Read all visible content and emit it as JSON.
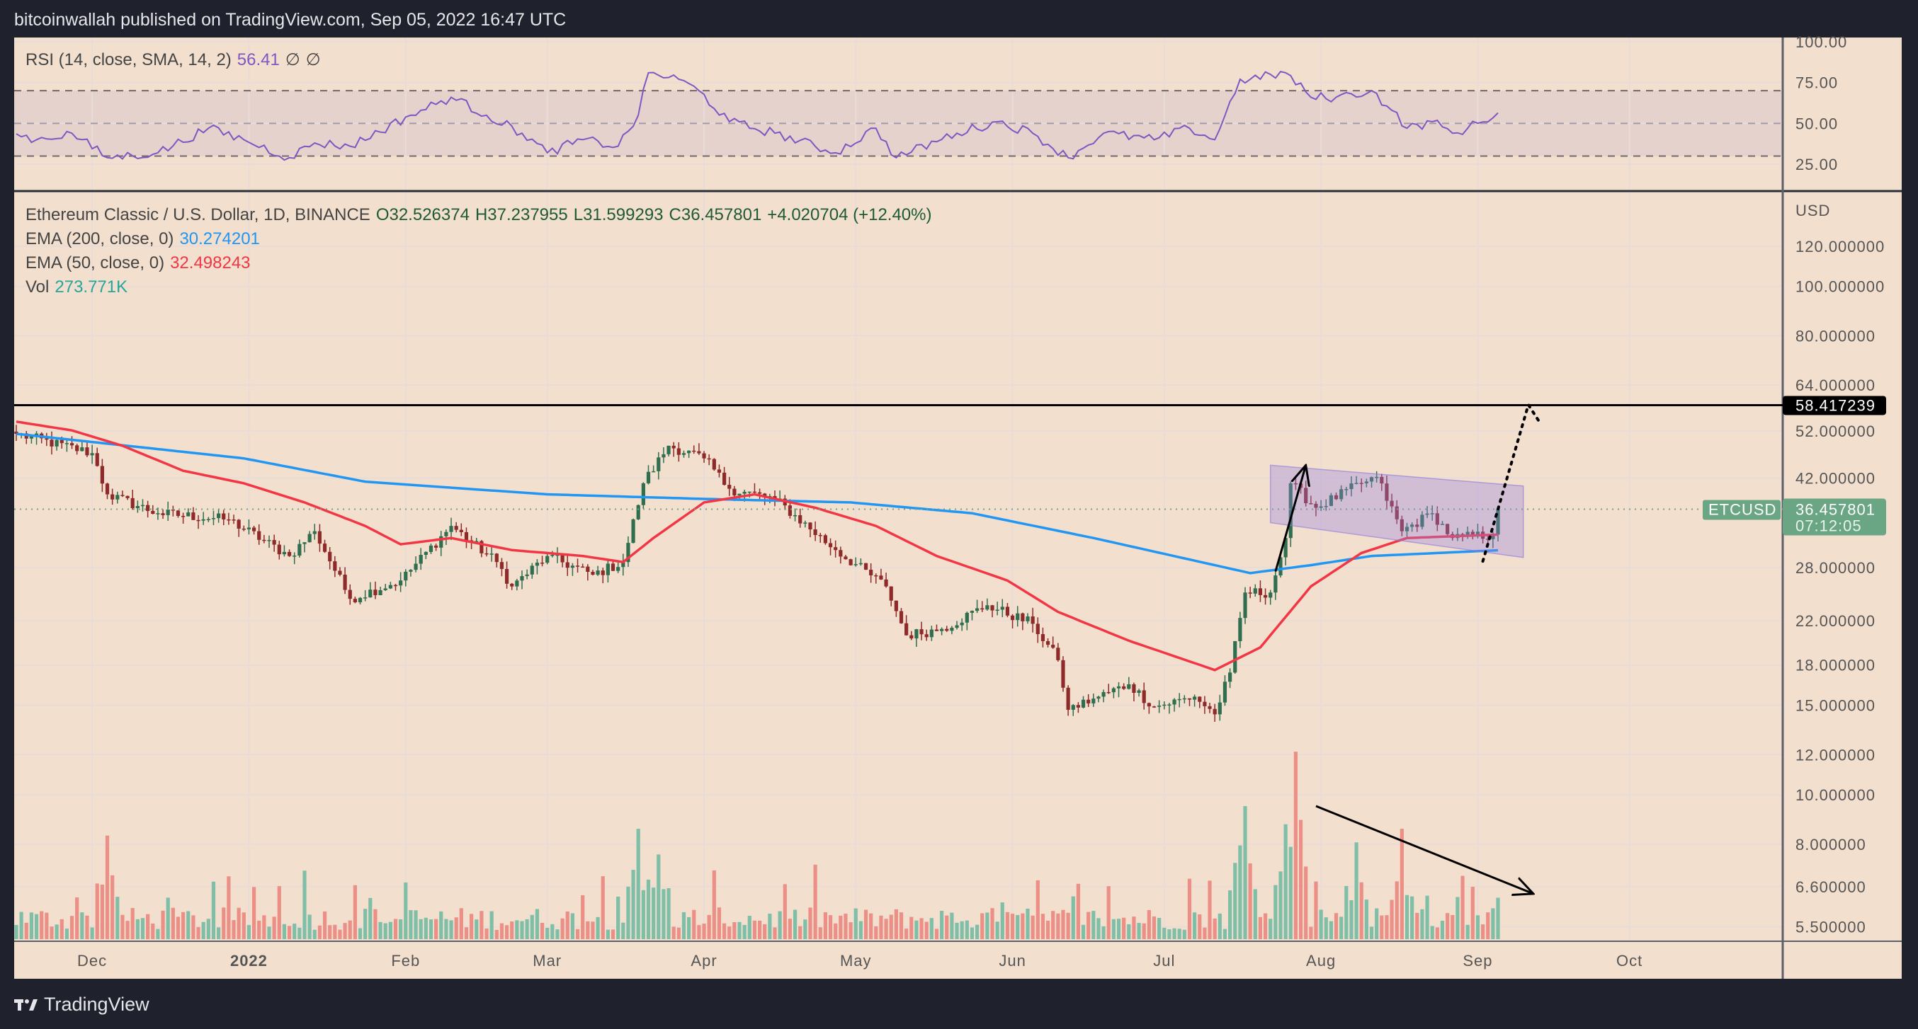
{
  "header": {
    "published": "bitcoinwallah published on TradingView.com, Sep 05, 2022 16:47 UTC"
  },
  "rsi_legend": {
    "label": "RSI (14, close, SMA, 14, 2)",
    "value": "56.41",
    "sym1": "∅",
    "sym2": "∅"
  },
  "price_legend": {
    "label": "Ethereum Classic / U.S. Dollar, 1D, BINANCE",
    "o": "O32.526374",
    "h": "H37.237955",
    "l": "L31.599293",
    "c": "C36.457801",
    "chg": "+4.020704 (+12.40%)"
  },
  "ema200_legend": {
    "label": "EMA (200, close, 0)",
    "value": "30.274201"
  },
  "ema50_legend": {
    "label": "EMA (50, close, 0)",
    "value": "32.498243"
  },
  "vol_legend": {
    "label": "Vol",
    "value": "273.771K"
  },
  "footer": {
    "brand": "TradingView"
  },
  "colors": {
    "up": "#2f6e4e",
    "down": "#8e2a2a",
    "ema200": "#2196f3",
    "ema50": "#f23645",
    "rsi": "#7e57c2",
    "vol_up": "#7fbfa8",
    "vol_down": "#ec8f87",
    "bg": "#f2dfcd"
  },
  "chart_data": {
    "type": "candlestick",
    "symbol": "ETCUSD",
    "start_date": "2021-11-16",
    "x_unit": "days since start_date",
    "y_scale": "log",
    "price_axis_unit": "USD",
    "price_ticks": [
      "120.000000",
      "100.000000",
      "80.000000",
      "64.000000",
      "52.000000",
      "42.000000",
      "28.000000",
      "22.000000",
      "18.000000",
      "15.000000",
      "12.000000",
      "10.000000",
      "8.000000",
      "6.600000",
      "5.500000"
    ],
    "rsi_ticks": [
      "100.00",
      "75.00",
      "50.00",
      "25.00"
    ],
    "time_ticks": [
      {
        "label": "Dec",
        "day": 15
      },
      {
        "label": "2022",
        "day": 46,
        "bold": true
      },
      {
        "label": "Feb",
        "day": 77
      },
      {
        "label": "Mar",
        "day": 105
      },
      {
        "label": "Apr",
        "day": 136
      },
      {
        "label": "May",
        "day": 166
      },
      {
        "label": "Jun",
        "day": 197
      },
      {
        "label": "Jul",
        "day": 227
      },
      {
        "label": "Aug",
        "day": 258
      },
      {
        "label": "Sep",
        "day": 289
      },
      {
        "label": "Oct",
        "day": 319
      }
    ],
    "close_keypoints": [
      [
        0,
        51.3
      ],
      [
        15,
        47
      ],
      [
        18,
        39
      ],
      [
        28,
        35.8
      ],
      [
        42,
        34.8
      ],
      [
        54,
        29.5
      ],
      [
        59,
        33
      ],
      [
        66,
        24.3
      ],
      [
        76,
        26.4
      ],
      [
        86,
        33.8
      ],
      [
        95,
        28.7
      ],
      [
        98,
        25.7
      ],
      [
        105,
        29.5
      ],
      [
        114,
        27.1
      ],
      [
        120,
        28.7
      ],
      [
        124,
        41
      ],
      [
        129,
        48.6
      ],
      [
        136,
        45.9
      ],
      [
        141,
        40
      ],
      [
        150,
        38.2
      ],
      [
        162,
        30.3
      ],
      [
        172,
        25.7
      ],
      [
        176,
        20.6
      ],
      [
        183,
        21.2
      ],
      [
        192,
        23.6
      ],
      [
        201,
        21.7
      ],
      [
        206,
        18.4
      ],
      [
        208,
        14.7
      ],
      [
        214,
        15.6
      ],
      [
        220,
        16.5
      ],
      [
        225,
        14.9
      ],
      [
        233,
        15.6
      ],
      [
        237,
        14.4
      ],
      [
        240,
        17.4
      ],
      [
        243,
        25
      ],
      [
        248,
        25
      ],
      [
        251,
        32
      ],
      [
        252,
        41
      ],
      [
        257,
        36.7
      ],
      [
        266,
        41
      ],
      [
        269,
        42.2
      ],
      [
        274,
        33
      ],
      [
        280,
        35.8
      ],
      [
        284,
        32
      ],
      [
        292,
        32.5
      ],
      [
        293,
        36.457801
      ]
    ],
    "ema200_keypoints": [
      [
        0,
        51.3
      ],
      [
        45,
        45.9
      ],
      [
        69,
        41.3
      ],
      [
        105,
        39
      ],
      [
        136,
        38.2
      ],
      [
        165,
        37.6
      ],
      [
        189,
        35.8
      ],
      [
        213,
        32
      ],
      [
        237,
        28.3
      ],
      [
        244,
        27.3
      ],
      [
        256,
        28.3
      ],
      [
        268,
        29.5
      ],
      [
        293,
        30.274201
      ]
    ],
    "ema50_keypoints": [
      [
        0,
        54.2
      ],
      [
        11,
        52.1
      ],
      [
        21,
        48.6
      ],
      [
        33,
        43.4
      ],
      [
        45,
        41
      ],
      [
        57,
        37.6
      ],
      [
        69,
        33.8
      ],
      [
        76,
        31.1
      ],
      [
        86,
        32
      ],
      [
        98,
        30.3
      ],
      [
        112,
        29.5
      ],
      [
        120,
        28.7
      ],
      [
        126,
        32
      ],
      [
        136,
        37.6
      ],
      [
        146,
        39
      ],
      [
        158,
        36.7
      ],
      [
        170,
        33.8
      ],
      [
        182,
        29.5
      ],
      [
        196,
        26.4
      ],
      [
        206,
        22.9
      ],
      [
        220,
        20.1
      ],
      [
        237,
        17.6
      ],
      [
        246,
        19.5
      ],
      [
        256,
        25.7
      ],
      [
        266,
        29.9
      ],
      [
        275,
        32
      ],
      [
        293,
        32.498243
      ]
    ],
    "rsi_keypoints": [
      [
        0,
        43.6
      ],
      [
        4,
        40
      ],
      [
        11,
        44
      ],
      [
        18,
        29
      ],
      [
        28,
        32
      ],
      [
        38,
        47
      ],
      [
        45,
        40
      ],
      [
        54,
        29
      ],
      [
        59,
        38
      ],
      [
        66,
        36
      ],
      [
        78,
        55
      ],
      [
        86,
        66
      ],
      [
        93,
        55
      ],
      [
        100,
        44
      ],
      [
        105,
        32
      ],
      [
        112,
        40
      ],
      [
        119,
        36
      ],
      [
        123,
        55
      ],
      [
        125,
        81
      ],
      [
        131,
        77
      ],
      [
        135,
        70
      ],
      [
        141,
        51
      ],
      [
        150,
        44
      ],
      [
        162,
        32
      ],
      [
        170,
        47
      ],
      [
        174,
        29
      ],
      [
        186,
        44
      ],
      [
        194,
        51
      ],
      [
        201,
        44
      ],
      [
        208,
        29
      ],
      [
        215,
        44
      ],
      [
        225,
        40
      ],
      [
        232,
        47
      ],
      [
        237,
        40
      ],
      [
        242,
        77
      ],
      [
        244,
        77
      ],
      [
        251,
        81
      ],
      [
        256,
        66
      ],
      [
        261,
        66
      ],
      [
        268,
        70
      ],
      [
        272,
        58
      ],
      [
        275,
        47
      ],
      [
        280,
        51
      ],
      [
        284,
        44
      ],
      [
        287,
        47
      ],
      [
        293,
        56.41
      ]
    ],
    "volume_spikes_k": [
      [
        18,
        685
      ],
      [
        123,
        730
      ],
      [
        127,
        560
      ],
      [
        242,
        620
      ],
      [
        243,
        880
      ],
      [
        251,
        760
      ],
      [
        253,
        1240
      ],
      [
        255,
        480
      ],
      [
        265,
        640
      ],
      [
        274,
        730
      ],
      [
        293,
        273.771
      ]
    ],
    "hline": {
      "price": 58.417239,
      "label": "58.417239"
    },
    "last_price": {
      "label": "ETCUSD",
      "price": "36.457801",
      "countdown": "07:12:05",
      "value": 36.457801
    },
    "annotations": {
      "channel": {
        "top": [
          [
            248,
            44.5
          ],
          [
            298,
            40.5
          ]
        ],
        "bottom": [
          [
            248,
            34.3
          ],
          [
            298,
            29.3
          ]
        ]
      },
      "up_arrow": [
        [
          249,
          27.5
        ],
        [
          255,
          44.5
        ]
      ],
      "dotted_projection": [
        [
          290,
          28.8
        ],
        [
          299,
          58.5
        ],
        [
          301,
          54.5
        ]
      ],
      "volume_arrow_k": [
        [
          257,
          880
        ],
        [
          300,
          300
        ]
      ]
    }
  }
}
